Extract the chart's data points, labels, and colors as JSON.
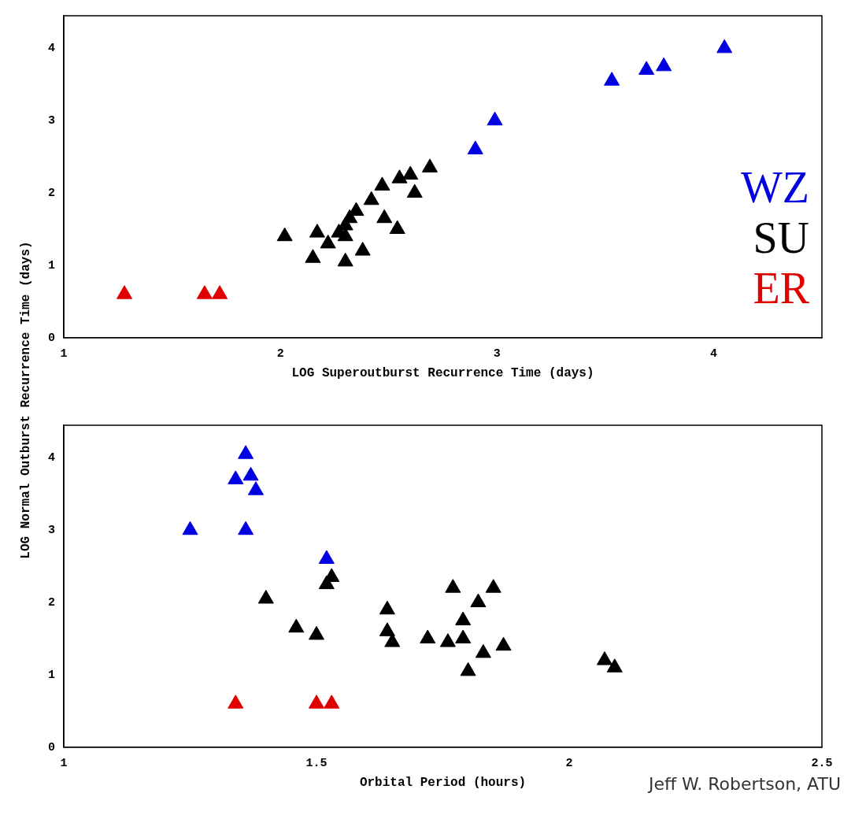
{
  "chart_data": [
    {
      "type": "scatter",
      "xlabel": "LOG Superoutburst Recurrence Time (days)",
      "ylabel": "LOG Normal Outburst Recurrence Time (days)",
      "xlim": [
        1,
        4.5
      ],
      "xticks": [
        1,
        2,
        3,
        4
      ],
      "ylim": [
        0,
        4.45
      ],
      "yticks": [
        0,
        1,
        2,
        3,
        4
      ],
      "marker": "triangle",
      "legend": "bottom right",
      "grid": false,
      "tick_labels": "xy",
      "series": [
        {
          "name": "WZ",
          "color": "#0000e0",
          "x": [
            2.9,
            2.99,
            3.53,
            3.69,
            3.77,
            4.05
          ],
          "values": [
            2.6,
            3.0,
            3.55,
            3.7,
            3.75,
            4.0
          ]
        },
        {
          "name": "SU",
          "color": "#000000",
          "x": [
            2.02,
            2.15,
            2.17,
            2.22,
            2.27,
            2.3,
            2.3,
            2.32,
            2.35,
            2.38,
            2.42,
            2.47,
            2.48,
            2.54,
            2.55,
            2.6,
            2.62,
            2.69,
            2.3
          ],
          "values": [
            1.4,
            1.1,
            1.45,
            1.3,
            1.45,
            1.05,
            1.55,
            1.65,
            1.75,
            1.2,
            1.9,
            2.1,
            1.65,
            1.5,
            2.2,
            2.25,
            2.0,
            2.35,
            1.4
          ]
        },
        {
          "name": "ER",
          "color": "#e00000",
          "x": [
            1.28,
            1.65,
            1.72
          ],
          "values": [
            0.6,
            0.6,
            0.6
          ]
        }
      ]
    },
    {
      "type": "scatter",
      "xlabel": "Orbital Period (hours)",
      "xlim": [
        1,
        2.5
      ],
      "xticks": [
        1,
        1.5,
        2,
        2.5
      ],
      "ylim": [
        0,
        4.45
      ],
      "yticks": [
        0,
        1,
        2,
        3,
        4
      ],
      "marker": "triangle",
      "legend": false,
      "grid": false,
      "tick_labels": "xy",
      "annotations": [
        "Jeff W. Robertson, ATU"
      ],
      "series": [
        {
          "color": "#0000e0",
          "x": [
            1.25,
            1.34,
            1.36,
            1.37,
            1.38,
            1.36,
            1.52
          ],
          "values": [
            3.0,
            3.7,
            4.05,
            3.75,
            3.55,
            3.0,
            2.6
          ]
        },
        {
          "color": "#000000",
          "x": [
            1.4,
            1.52,
            1.53,
            1.46,
            1.5,
            1.64,
            1.64,
            1.65,
            1.72,
            1.77,
            1.76,
            1.79,
            1.79,
            1.8,
            1.82,
            1.83,
            1.85,
            1.87,
            2.07,
            2.09
          ],
          "values": [
            2.05,
            2.25,
            2.35,
            1.65,
            1.55,
            1.9,
            1.6,
            1.45,
            1.5,
            2.2,
            1.45,
            1.5,
            1.75,
            1.05,
            2.0,
            1.3,
            2.2,
            1.4,
            1.2,
            1.1
          ]
        },
        {
          "color": "#e00000",
          "x": [
            1.34,
            1.5,
            1.53
          ],
          "values": [
            0.6,
            0.6,
            0.6
          ]
        }
      ]
    }
  ]
}
